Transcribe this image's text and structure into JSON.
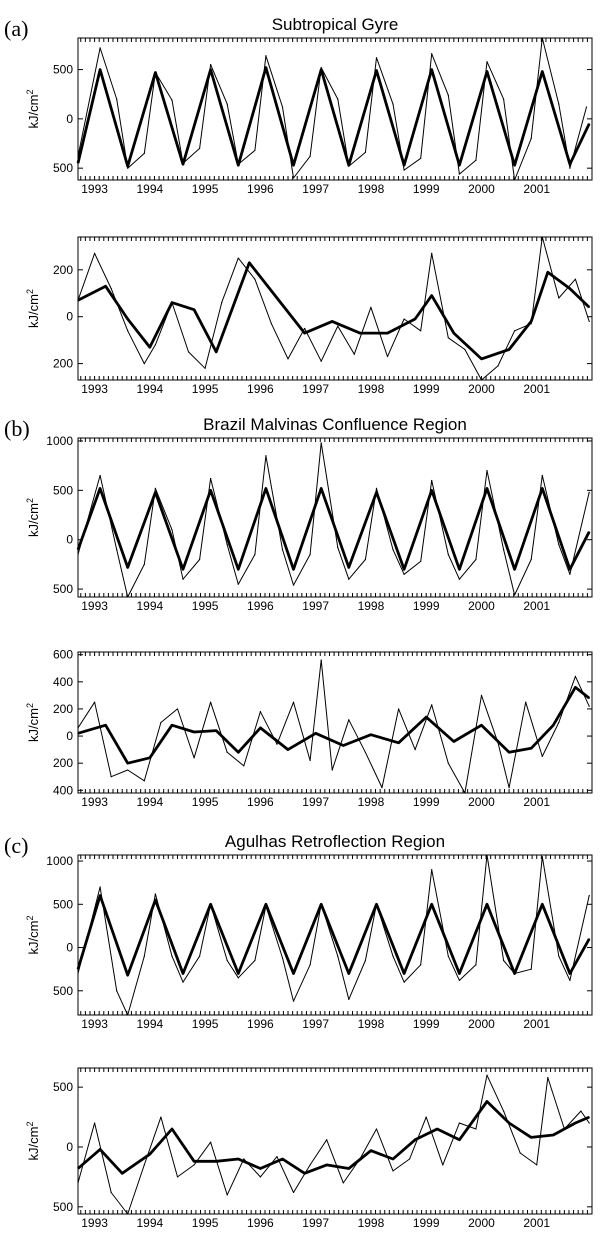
{
  "chart_data": [
    {
      "type": "line",
      "panel": "(a)",
      "title": "Subtropical Gyre",
      "xlabel": "",
      "ylabel": "kJ/cm",
      "xlim": [
        1992.7,
        2002.0
      ],
      "ylim": [
        -620,
        820
      ],
      "x_ticks": [
        1993,
        1994,
        1995,
        1996,
        1997,
        1998,
        1999,
        2000,
        2001
      ],
      "y_ticks": [
        500,
        0,
        -500
      ],
      "y_tick_labels": [
        "500",
        "0",
        "500"
      ],
      "series": [
        {
          "style": "thin",
          "x": [
            1992.7,
            1993.1,
            1993.4,
            1993.6,
            1993.9,
            1994.1,
            1994.4,
            1994.6,
            1994.9,
            1995.1,
            1995.4,
            1995.6,
            1995.9,
            1996.1,
            1996.4,
            1996.6,
            1996.9,
            1997.1,
            1997.4,
            1997.6,
            1997.9,
            1998.1,
            1998.4,
            1998.6,
            1998.9,
            1999.1,
            1999.4,
            1999.6,
            1999.9,
            2000.1,
            2000.4,
            2000.6,
            2000.9,
            2001.1,
            2001.4,
            2001.6,
            2001.9
          ],
          "y": [
            -380,
            720,
            200,
            -500,
            -350,
            470,
            190,
            -450,
            -300,
            550,
            150,
            -460,
            -320,
            640,
            120,
            -600,
            -380,
            520,
            200,
            -480,
            -340,
            620,
            150,
            -520,
            -400,
            660,
            240,
            -560,
            -420,
            580,
            200,
            -620,
            -200,
            820,
            150,
            -500,
            120
          ]
        },
        {
          "style": "thick",
          "x": [
            1992.7,
            1993.1,
            1993.6,
            1994.1,
            1994.6,
            1995.1,
            1995.6,
            1996.1,
            1996.6,
            1997.1,
            1997.6,
            1998.1,
            1998.6,
            1999.1,
            1999.6,
            2000.1,
            2000.6,
            2001.1,
            2001.6,
            2001.95
          ],
          "y": [
            -450,
            500,
            -480,
            470,
            -460,
            500,
            -470,
            520,
            -470,
            500,
            -470,
            490,
            -470,
            500,
            -470,
            480,
            -470,
            480,
            -460,
            -50
          ]
        }
      ]
    },
    {
      "type": "line",
      "panel": "",
      "title": "",
      "xlabel": "",
      "ylabel": "kJ/cm",
      "xlim": [
        1992.7,
        2002.0
      ],
      "ylim": [
        -270,
        340
      ],
      "x_ticks": [
        1993,
        1994,
        1995,
        1996,
        1997,
        1998,
        1999,
        2000,
        2001
      ],
      "y_ticks": [
        200,
        0,
        -200
      ],
      "y_tick_labels": [
        "200",
        "0",
        "200"
      ],
      "series": [
        {
          "style": "thin",
          "x": [
            1992.7,
            1993.0,
            1993.3,
            1993.6,
            1993.9,
            1994.1,
            1994.4,
            1994.7,
            1995.0,
            1995.3,
            1995.6,
            1995.9,
            1996.2,
            1996.5,
            1996.8,
            1997.1,
            1997.4,
            1997.7,
            1998.0,
            1998.3,
            1998.6,
            1998.9,
            1999.1,
            1999.4,
            1999.7,
            2000.0,
            2000.3,
            2000.6,
            2000.9,
            2001.1,
            2001.4,
            2001.7,
            2001.95
          ],
          "y": [
            70,
            270,
            120,
            -60,
            -200,
            -120,
            60,
            -150,
            -220,
            60,
            250,
            160,
            -30,
            -180,
            -50,
            -190,
            -40,
            -160,
            40,
            -170,
            -10,
            -60,
            270,
            -90,
            -140,
            -270,
            -210,
            -60,
            -30,
            340,
            80,
            160,
            -20
          ]
        },
        {
          "style": "thick",
          "x": [
            1992.7,
            1993.2,
            1993.6,
            1994.0,
            1994.4,
            1994.8,
            1995.2,
            1995.8,
            1996.3,
            1996.8,
            1997.3,
            1997.8,
            1998.3,
            1998.8,
            1999.1,
            1999.5,
            2000.0,
            2000.5,
            2000.9,
            2001.2,
            2001.6,
            2001.95
          ],
          "y": [
            70,
            130,
            -10,
            -130,
            60,
            30,
            -150,
            230,
            80,
            -70,
            -20,
            -70,
            -70,
            -10,
            90,
            -70,
            -180,
            -140,
            -20,
            190,
            120,
            40
          ]
        }
      ]
    },
    {
      "type": "line",
      "panel": "(b)",
      "title": "Brazil  Malvinas Confluence Region",
      "xlabel": "",
      "ylabel": "kJ/cm",
      "xlim": [
        1992.7,
        2002.0
      ],
      "ylim": [
        -580,
        1030
      ],
      "x_ticks": [
        1993,
        1994,
        1995,
        1996,
        1997,
        1998,
        1999,
        2000,
        2001
      ],
      "y_ticks": [
        1000,
        500,
        0,
        -500
      ],
      "y_tick_labels": [
        "1000",
        "500",
        "0",
        "500"
      ],
      "series": [
        {
          "style": "thin",
          "x": [
            1992.7,
            1993.1,
            1993.4,
            1993.6,
            1993.9,
            1994.1,
            1994.4,
            1994.6,
            1994.9,
            1995.1,
            1995.4,
            1995.6,
            1995.9,
            1996.1,
            1996.4,
            1996.6,
            1996.9,
            1997.1,
            1997.4,
            1997.6,
            1997.9,
            1998.1,
            1998.4,
            1998.6,
            1998.9,
            1999.1,
            1999.4,
            1999.6,
            1999.9,
            2000.1,
            2000.4,
            2000.6,
            2000.9,
            2001.1,
            2001.4,
            2001.6,
            2001.95
          ],
          "y": [
            -150,
            650,
            -100,
            -580,
            -250,
            520,
            100,
            -400,
            -200,
            620,
            -50,
            -450,
            -150,
            850,
            -100,
            -460,
            -150,
            980,
            -80,
            -400,
            -200,
            520,
            -100,
            -350,
            -220,
            600,
            -150,
            -400,
            -200,
            700,
            -100,
            -560,
            -200,
            650,
            -50,
            -350,
            480
          ]
        },
        {
          "style": "thick",
          "x": [
            1992.7,
            1993.1,
            1993.6,
            1994.1,
            1994.6,
            1995.1,
            1995.6,
            1996.1,
            1996.6,
            1997.1,
            1997.6,
            1998.1,
            1998.6,
            1999.1,
            1999.6,
            2000.1,
            2000.6,
            2001.1,
            2001.6,
            2001.95
          ],
          "y": [
            -100,
            520,
            -280,
            480,
            -300,
            500,
            -300,
            520,
            -300,
            520,
            -280,
            480,
            -300,
            500,
            -300,
            520,
            -300,
            520,
            -300,
            80
          ]
        }
      ]
    },
    {
      "type": "line",
      "panel": "",
      "title": "",
      "xlabel": "",
      "ylabel": "kJ/cm",
      "xlim": [
        1992.7,
        2002.0
      ],
      "ylim": [
        -420,
        620
      ],
      "x_ticks": [
        1993,
        1994,
        1995,
        1996,
        1997,
        1998,
        1999,
        2000,
        2001
      ],
      "y_ticks": [
        600,
        400,
        200,
        0,
        -200,
        -400
      ],
      "y_tick_labels": [
        "600",
        "400",
        "200",
        "0",
        "200",
        "400"
      ],
      "series": [
        {
          "style": "thin",
          "x": [
            1992.7,
            1993.0,
            1993.3,
            1993.6,
            1993.9,
            1994.2,
            1994.5,
            1994.8,
            1995.1,
            1995.4,
            1995.7,
            1996.0,
            1996.3,
            1996.6,
            1996.9,
            1997.1,
            1997.3,
            1997.6,
            1997.9,
            1998.2,
            1998.5,
            1998.8,
            1999.1,
            1999.4,
            1999.7,
            2000.0,
            2000.3,
            2000.5,
            2000.8,
            2001.1,
            2001.4,
            2001.7,
            2001.95
          ],
          "y": [
            60,
            250,
            -300,
            -250,
            -330,
            100,
            200,
            -160,
            250,
            -120,
            -220,
            180,
            -60,
            250,
            -180,
            560,
            -250,
            120,
            -120,
            -380,
            200,
            -100,
            230,
            -200,
            -420,
            300,
            -50,
            -380,
            250,
            -150,
            100,
            440,
            220
          ]
        },
        {
          "style": "thick",
          "x": [
            1992.7,
            1993.2,
            1993.6,
            1994.0,
            1994.4,
            1994.8,
            1995.2,
            1995.6,
            1996.0,
            1996.5,
            1997.0,
            1997.5,
            1998.0,
            1998.5,
            1999.0,
            1999.5,
            2000.0,
            2000.5,
            2000.9,
            2001.3,
            2001.7,
            2001.95
          ],
          "y": [
            20,
            80,
            -200,
            -160,
            80,
            30,
            40,
            -120,
            60,
            -100,
            20,
            -70,
            10,
            -50,
            140,
            -40,
            80,
            -120,
            -90,
            80,
            360,
            280
          ]
        }
      ]
    },
    {
      "type": "line",
      "panel": "(c)",
      "title": "Agulhas Retroflection Region",
      "xlabel": "",
      "ylabel": "kJ/cm",
      "xlim": [
        1992.7,
        2002.0
      ],
      "ylim": [
        -780,
        1070
      ],
      "x_ticks": [
        1993,
        1994,
        1995,
        1996,
        1997,
        1998,
        1999,
        2000,
        2001
      ],
      "y_ticks": [
        1000,
        500,
        0,
        -500
      ],
      "y_tick_labels": [
        "1000",
        "500",
        "0",
        "500"
      ],
      "series": [
        {
          "style": "thin",
          "x": [
            1992.7,
            1993.1,
            1993.4,
            1993.6,
            1993.9,
            1994.1,
            1994.4,
            1994.6,
            1994.9,
            1995.1,
            1995.4,
            1995.6,
            1995.9,
            1996.1,
            1996.4,
            1996.6,
            1996.9,
            1997.1,
            1997.4,
            1997.6,
            1997.9,
            1998.1,
            1998.4,
            1998.6,
            1998.9,
            1999.1,
            1999.4,
            1999.6,
            1999.9,
            2000.1,
            2000.4,
            2000.6,
            2000.9,
            2001.1,
            2001.4,
            2001.6,
            2001.95
          ],
          "y": [
            -300,
            700,
            -500,
            -780,
            -100,
            620,
            -100,
            -400,
            -100,
            500,
            -150,
            -350,
            -150,
            480,
            -120,
            -620,
            -200,
            500,
            -100,
            -600,
            -150,
            500,
            -100,
            -400,
            -200,
            900,
            -100,
            -380,
            -200,
            1070,
            -150,
            -300,
            -250,
            1050,
            -100,
            -380,
            600
          ]
        },
        {
          "style": "thick",
          "x": [
            1992.7,
            1993.1,
            1993.6,
            1994.1,
            1994.6,
            1995.1,
            1995.6,
            1996.1,
            1996.6,
            1997.1,
            1997.6,
            1998.1,
            1998.6,
            1999.1,
            1999.6,
            2000.1,
            2000.6,
            2001.1,
            2001.6,
            2001.95
          ],
          "y": [
            -250,
            600,
            -320,
            550,
            -300,
            500,
            -300,
            500,
            -300,
            500,
            -300,
            500,
            -300,
            500,
            -300,
            500,
            -300,
            500,
            -300,
            100
          ]
        }
      ]
    },
    {
      "type": "line",
      "panel": "",
      "title": "",
      "xlabel": "",
      "ylabel": "kJ/cm",
      "xlim": [
        1992.7,
        2002.0
      ],
      "ylim": [
        -560,
        660
      ],
      "x_ticks": [
        1993,
        1994,
        1995,
        1996,
        1997,
        1998,
        1999,
        2000,
        2001
      ],
      "y_ticks": [
        500,
        0,
        -500
      ],
      "y_tick_labels": [
        "500",
        "0",
        "500"
      ],
      "series": [
        {
          "style": "thin",
          "x": [
            1992.7,
            1993.0,
            1993.3,
            1993.6,
            1993.9,
            1994.2,
            1994.5,
            1994.8,
            1995.1,
            1995.4,
            1995.7,
            1996.0,
            1996.3,
            1996.6,
            1996.9,
            1997.2,
            1997.5,
            1997.8,
            1998.1,
            1998.4,
            1998.7,
            1999.0,
            1999.3,
            1999.6,
            1999.9,
            2000.1,
            2000.4,
            2000.7,
            2001.0,
            2001.2,
            2001.5,
            2001.8,
            2001.95
          ],
          "y": [
            -300,
            200,
            -380,
            -560,
            -150,
            250,
            -250,
            -150,
            40,
            -400,
            -100,
            -250,
            -80,
            -380,
            -150,
            60,
            -300,
            -100,
            150,
            -200,
            -100,
            250,
            -150,
            200,
            150,
            600,
            300,
            -50,
            -150,
            580,
            150,
            300,
            200
          ]
        },
        {
          "style": "thick",
          "x": [
            1992.7,
            1993.1,
            1993.5,
            1994.0,
            1994.4,
            1994.8,
            1995.2,
            1995.6,
            1996.0,
            1996.4,
            1996.8,
            1997.2,
            1997.6,
            1998.0,
            1998.4,
            1998.8,
            1999.2,
            1999.6,
            2000.1,
            2000.5,
            2000.9,
            2001.3,
            2001.7,
            2001.95
          ],
          "y": [
            -180,
            -20,
            -220,
            -60,
            150,
            -120,
            -120,
            -100,
            -180,
            -100,
            -220,
            -150,
            -180,
            -30,
            -100,
            60,
            150,
            60,
            380,
            200,
            80,
            100,
            200,
            250
          ]
        }
      ]
    }
  ]
}
